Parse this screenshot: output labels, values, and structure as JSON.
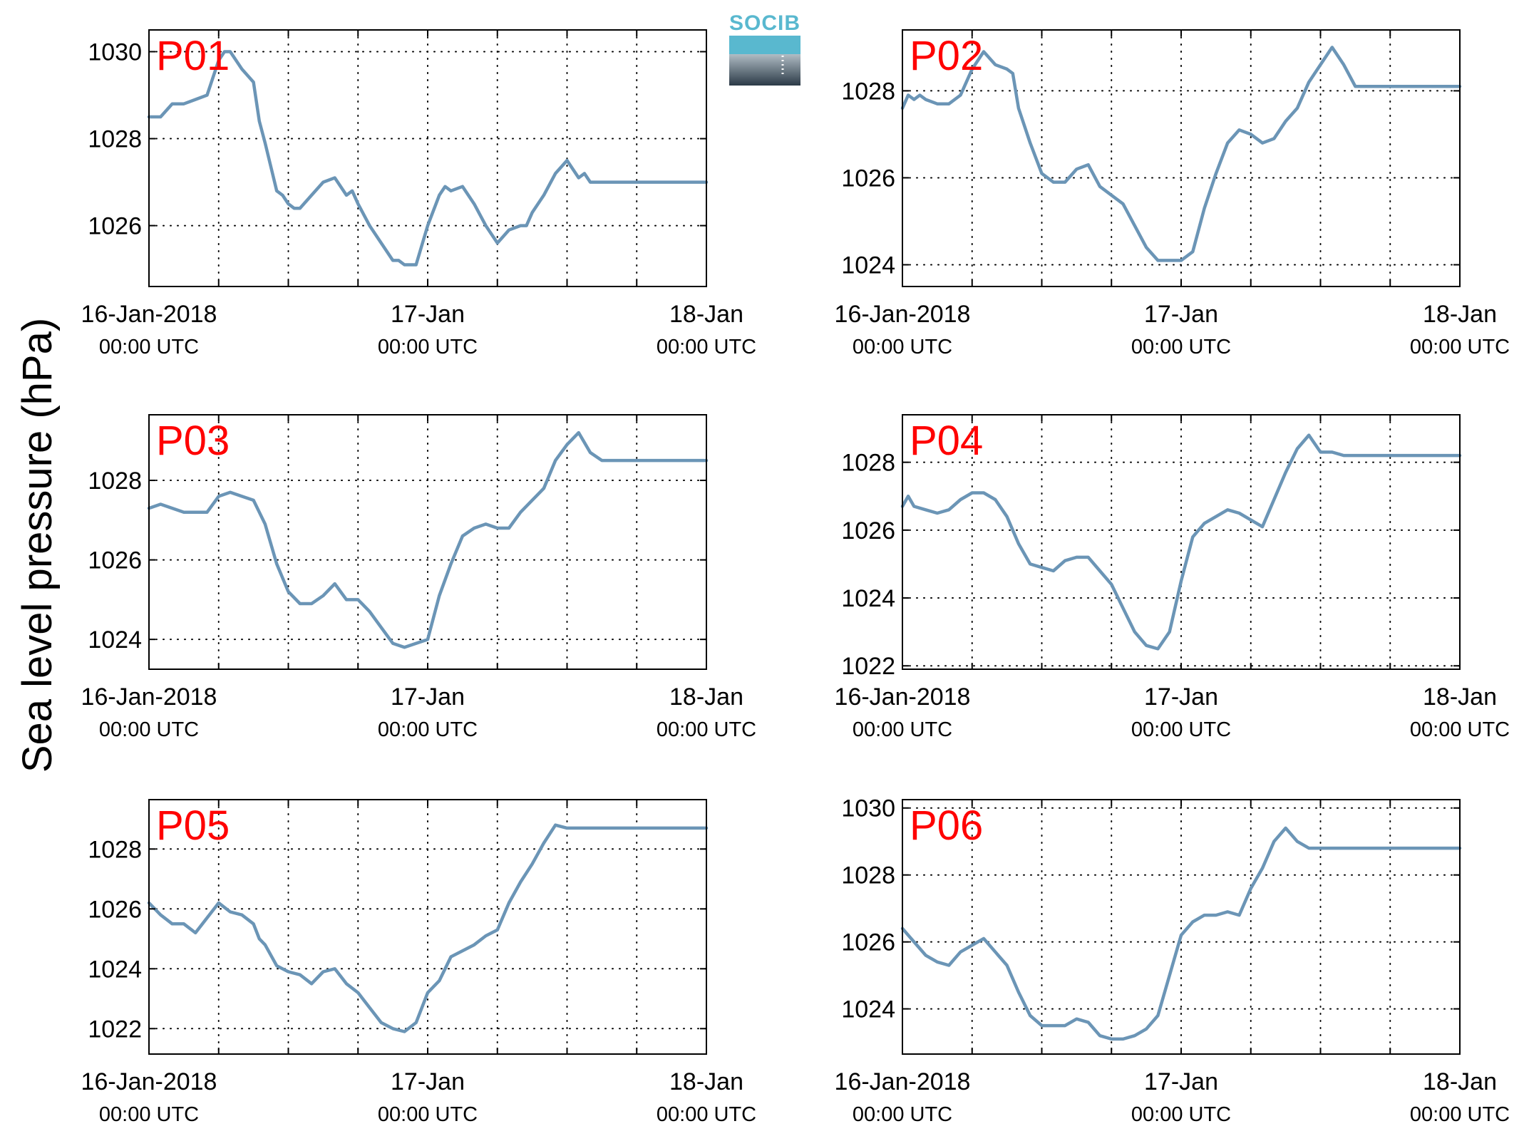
{
  "figure": {
    "ylabel": "Sea level pressure (hPa)",
    "logo_text": "SOCIB",
    "colors": {
      "series": "#6b95b6",
      "panel_title": "#ff0000",
      "logo_top": "#59b8cf",
      "logo_bottom": "#2b3a47",
      "axes": "#000000"
    }
  },
  "chart_data": [
    {
      "type": "line",
      "title": "P01",
      "xlabel": "",
      "ylabel": "Sea level pressure (hPa)",
      "x_unit": "hours since 16-Jan-2018 00:00 UTC",
      "xlim": [
        0,
        48
      ],
      "ylim": [
        1024.6,
        1030.5
      ],
      "yticks": [
        1026,
        1028,
        1030
      ],
      "xticks": [
        0,
        24,
        48
      ],
      "xticklabels": [
        [
          "16-Jan-2018",
          "00:00 UTC"
        ],
        [
          "17-Jan",
          "00:00 UTC"
        ],
        [
          "18-Jan",
          "00:00 UTC"
        ]
      ],
      "grid": true,
      "series": [
        {
          "x": [
            0,
            1,
            2,
            2.5,
            3,
            4,
            5,
            6,
            6.5,
            7,
            8,
            9,
            9.5,
            10,
            11,
            11.5,
            12,
            12.5,
            13,
            14,
            15,
            16,
            17,
            17.5,
            18,
            19,
            20,
            21,
            21.5,
            22,
            23,
            24,
            25,
            25.5,
            26,
            27,
            28,
            29,
            29.5,
            30,
            31,
            32,
            32.5,
            33,
            34,
            35,
            36,
            37,
            37.5,
            38,
            39,
            40,
            40.5,
            41,
            42,
            43,
            44,
            45,
            45.5,
            46,
            47,
            48
          ],
          "values": [
            1028.5,
            1028.5,
            1028.8,
            1028.8,
            1028.8,
            1028.9,
            1029.0,
            1029.8,
            1030.0,
            1030.0,
            1029.6,
            1029.3,
            1028.4,
            1027.9,
            1026.8,
            1026.7,
            1026.5,
            1026.4,
            1026.4,
            1026.7,
            1027.0,
            1027.1,
            1026.7,
            1026.8,
            1026.5,
            1026.0,
            1025.6,
            1025.2,
            1025.2,
            1025.1,
            1025.1,
            1026.0,
            1026.7,
            1026.9,
            1026.8,
            1026.9,
            1026.5,
            1026.0,
            1025.8,
            1025.6,
            1025.9,
            1026.0,
            1026.0,
            1026.3,
            1026.7,
            1027.2,
            1027.5,
            1027.1,
            1027.2,
            1027.0,
            1027.0,
            1027.0,
            1027.0,
            1027.0,
            1027.0,
            1027.0,
            1027.0,
            1027.0,
            1027.0,
            1027.0,
            1027.0,
            1027.0
          ]
        }
      ]
    },
    {
      "type": "line",
      "title": "P02",
      "xlabel": "",
      "ylabel": "Sea level pressure (hPa)",
      "x_unit": "hours since 16-Jan-2018 00:00 UTC",
      "xlim": [
        0,
        48
      ],
      "ylim": [
        1023.5,
        1029.4
      ],
      "yticks": [
        1024,
        1026,
        1028
      ],
      "xticks": [
        0,
        24,
        48
      ],
      "xticklabels": [
        [
          "16-Jan-2018",
          "00:00 UTC"
        ],
        [
          "17-Jan",
          "00:00 UTC"
        ],
        [
          "18-Jan",
          "00:00 UTC"
        ]
      ],
      "grid": true,
      "series": [
        {
          "x": [
            0,
            0.5,
            1,
            1.5,
            2,
            3,
            4,
            5,
            6,
            6.5,
            7,
            8,
            9,
            9.5,
            10,
            11,
            12,
            13,
            14,
            15,
            16,
            17,
            18,
            19,
            20,
            21,
            22,
            23,
            24,
            25,
            26,
            27,
            28,
            29,
            30,
            31,
            32,
            33,
            34,
            35,
            36,
            37,
            38,
            39,
            40,
            41,
            42,
            43,
            44,
            45,
            45.5,
            46,
            47,
            48
          ],
          "values": [
            1027.6,
            1027.9,
            1027.8,
            1027.9,
            1027.8,
            1027.7,
            1027.7,
            1027.9,
            1028.5,
            1028.7,
            1028.9,
            1028.6,
            1028.5,
            1028.4,
            1027.6,
            1026.8,
            1026.1,
            1025.9,
            1025.9,
            1026.2,
            1026.3,
            1025.8,
            1025.6,
            1025.4,
            1024.9,
            1024.4,
            1024.1,
            1024.1,
            1024.1,
            1024.3,
            1025.3,
            1026.1,
            1026.8,
            1027.1,
            1027.0,
            1026.8,
            1026.9,
            1027.3,
            1027.6,
            1028.2,
            1028.6,
            1029.0,
            1028.6,
            1028.1,
            1028.1,
            1028.1,
            1028.1,
            1028.1,
            1028.1,
            1028.1,
            1028.1,
            1028.1,
            1028.1,
            1028.1
          ]
        }
      ]
    },
    {
      "type": "line",
      "title": "P03",
      "xlabel": "",
      "ylabel": "Sea level pressure (hPa)",
      "x_unit": "hours since 16-Jan-2018 00:00 UTC",
      "xlim": [
        0,
        48
      ],
      "ylim": [
        1023.25,
        1029.65
      ],
      "yticks": [
        1024,
        1026,
        1028
      ],
      "xticks": [
        0,
        24,
        48
      ],
      "xticklabels": [
        [
          "16-Jan-2018",
          "00:00 UTC"
        ],
        [
          "17-Jan",
          "00:00 UTC"
        ],
        [
          "18-Jan",
          "00:00 UTC"
        ]
      ],
      "grid": true,
      "series": [
        {
          "x": [
            0,
            1,
            2,
            3,
            4,
            5,
            6,
            7,
            8,
            9,
            9.5,
            10,
            11,
            12,
            13,
            14,
            15,
            16,
            17,
            18,
            19,
            20,
            21,
            22,
            23,
            24,
            25,
            26,
            27,
            28,
            29,
            30,
            31,
            32,
            33,
            34,
            35,
            36,
            37,
            38,
            39,
            40,
            41,
            42,
            43,
            44,
            45,
            46,
            47,
            48
          ],
          "values": [
            1027.3,
            1027.4,
            1027.3,
            1027.2,
            1027.2,
            1027.2,
            1027.6,
            1027.7,
            1027.6,
            1027.5,
            1027.2,
            1026.9,
            1025.9,
            1025.2,
            1024.9,
            1024.9,
            1025.1,
            1025.4,
            1025.0,
            1025.0,
            1024.7,
            1024.3,
            1023.9,
            1023.8,
            1023.9,
            1024.0,
            1025.1,
            1025.9,
            1026.6,
            1026.8,
            1026.9,
            1026.8,
            1026.8,
            1027.2,
            1027.5,
            1027.8,
            1028.5,
            1028.9,
            1029.2,
            1028.7,
            1028.5,
            1028.5,
            1028.5,
            1028.5,
            1028.5,
            1028.5,
            1028.5,
            1028.5,
            1028.5,
            1028.5
          ]
        }
      ]
    },
    {
      "type": "line",
      "title": "P04",
      "xlabel": "",
      "ylabel": "Sea level pressure (hPa)",
      "x_unit": "hours since 16-Jan-2018 00:00 UTC",
      "xlim": [
        0,
        48
      ],
      "ylim": [
        1021.9,
        1029.4
      ],
      "yticks": [
        1022,
        1024,
        1026,
        1028
      ],
      "xticks": [
        0,
        24,
        48
      ],
      "xticklabels": [
        [
          "16-Jan-2018",
          "00:00 UTC"
        ],
        [
          "17-Jan",
          "00:00 UTC"
        ],
        [
          "18-Jan",
          "00:00 UTC"
        ]
      ],
      "grid": true,
      "series": [
        {
          "x": [
            0,
            0.5,
            1,
            2,
            3,
            4,
            5,
            6,
            7,
            8,
            9,
            10,
            11,
            12,
            13,
            14,
            15,
            16,
            17,
            18,
            19,
            20,
            21,
            22,
            23,
            24,
            25,
            26,
            27,
            28,
            29,
            30,
            31,
            32,
            33,
            34,
            35,
            36,
            37,
            38,
            39,
            40,
            41,
            42,
            43,
            44,
            45,
            46,
            47,
            48
          ],
          "values": [
            1026.7,
            1027.0,
            1026.7,
            1026.6,
            1026.5,
            1026.6,
            1026.9,
            1027.1,
            1027.1,
            1026.9,
            1026.4,
            1025.6,
            1025.0,
            1024.9,
            1024.8,
            1025.1,
            1025.2,
            1025.2,
            1024.8,
            1024.4,
            1023.7,
            1023.0,
            1022.6,
            1022.5,
            1023.0,
            1024.5,
            1025.8,
            1026.2,
            1026.4,
            1026.6,
            1026.5,
            1026.3,
            1026.1,
            1026.9,
            1027.7,
            1028.4,
            1028.8,
            1028.3,
            1028.3,
            1028.2,
            1028.2,
            1028.2,
            1028.2,
            1028.2,
            1028.2,
            1028.2,
            1028.2,
            1028.2,
            1028.2,
            1028.2
          ]
        }
      ]
    },
    {
      "type": "line",
      "title": "P05",
      "xlabel": "",
      "ylabel": "Sea level pressure (hPa)",
      "x_unit": "hours since 16-Jan-2018 00:00 UTC",
      "xlim": [
        0,
        48
      ],
      "ylim": [
        1021.15,
        1029.65
      ],
      "yticks": [
        1022,
        1024,
        1026,
        1028
      ],
      "xticks": [
        0,
        24,
        48
      ],
      "xticklabels": [
        [
          "16-Jan-2018",
          "00:00 UTC"
        ],
        [
          "17-Jan",
          "00:00 UTC"
        ],
        [
          "18-Jan",
          "00:00 UTC"
        ]
      ],
      "grid": true,
      "series": [
        {
          "x": [
            0,
            1,
            2,
            3,
            4,
            5,
            6,
            7,
            8,
            9,
            9.5,
            10,
            11,
            12,
            13,
            14,
            15,
            16,
            17,
            18,
            19,
            20,
            21,
            22,
            23,
            24,
            25,
            26,
            27,
            28,
            29,
            30,
            31,
            32,
            33,
            34,
            35,
            36,
            37,
            38,
            39,
            40,
            41,
            42,
            43,
            44,
            45,
            46,
            47,
            48
          ],
          "values": [
            1026.2,
            1025.8,
            1025.5,
            1025.5,
            1025.2,
            1025.7,
            1026.2,
            1025.9,
            1025.8,
            1025.5,
            1025.0,
            1024.8,
            1024.1,
            1023.9,
            1023.8,
            1023.5,
            1023.9,
            1024.0,
            1023.5,
            1023.2,
            1022.7,
            1022.2,
            1022.0,
            1021.9,
            1022.2,
            1023.2,
            1023.6,
            1024.4,
            1024.6,
            1024.8,
            1025.1,
            1025.3,
            1026.2,
            1026.9,
            1027.5,
            1028.2,
            1028.8,
            1028.7,
            1028.7,
            1028.7,
            1028.7,
            1028.7,
            1028.7,
            1028.7,
            1028.7,
            1028.7,
            1028.7,
            1028.7,
            1028.7,
            1028.7
          ]
        }
      ]
    },
    {
      "type": "line",
      "title": "P06",
      "xlabel": "",
      "ylabel": "Sea level pressure (hPa)",
      "x_unit": "hours since 16-Jan-2018 00:00 UTC",
      "xlim": [
        0,
        48
      ],
      "ylim": [
        1022.65,
        1030.25
      ],
      "yticks": [
        1024,
        1026,
        1028,
        1030
      ],
      "xticks": [
        0,
        24,
        48
      ],
      "xticklabels": [
        [
          "16-Jan-2018",
          "00:00 UTC"
        ],
        [
          "17-Jan",
          "00:00 UTC"
        ],
        [
          "18-Jan",
          "00:00 UTC"
        ]
      ],
      "grid": true,
      "series": [
        {
          "x": [
            0,
            1,
            2,
            3,
            4,
            5,
            6,
            7,
            8,
            9,
            10,
            11,
            12,
            13,
            14,
            15,
            16,
            17,
            18,
            19,
            20,
            21,
            22,
            23,
            24,
            25,
            26,
            27,
            28,
            29,
            30,
            31,
            32,
            33,
            34,
            35,
            36,
            37,
            38,
            39,
            40,
            41,
            42,
            43,
            44,
            45,
            46,
            47,
            48
          ],
          "values": [
            1026.4,
            1026.0,
            1025.6,
            1025.4,
            1025.3,
            1025.7,
            1025.9,
            1026.1,
            1025.7,
            1025.3,
            1024.5,
            1023.8,
            1023.5,
            1023.5,
            1023.5,
            1023.7,
            1023.6,
            1023.2,
            1023.1,
            1023.1,
            1023.2,
            1023.4,
            1023.8,
            1025.0,
            1026.2,
            1026.6,
            1026.8,
            1026.8,
            1026.9,
            1026.8,
            1027.6,
            1028.2,
            1029.0,
            1029.4,
            1029.0,
            1028.8,
            1028.8,
            1028.8,
            1028.8,
            1028.8,
            1028.8,
            1028.8,
            1028.8,
            1028.8,
            1028.8,
            1028.8,
            1028.8,
            1028.8,
            1028.8
          ]
        }
      ]
    }
  ]
}
